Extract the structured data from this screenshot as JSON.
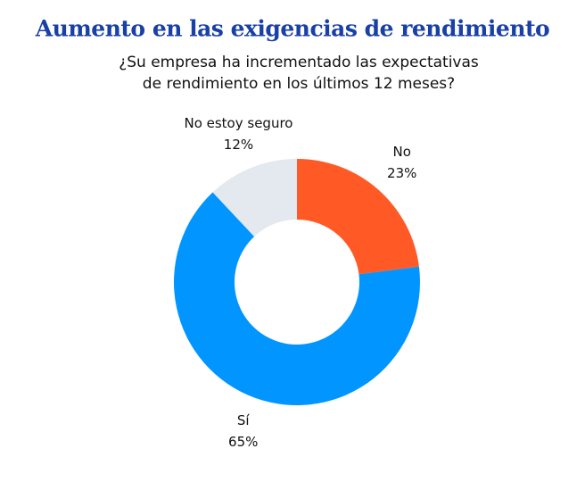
{
  "chart_data": {
    "type": "donut",
    "title": "Aumento en las exigencias de rendimiento",
    "subtitle": [
      "¿Su empresa ha incrementado las expectativas",
      "de rendimiento en los últimos 12 meses?"
    ],
    "categories": [
      "No",
      "Sí",
      "No estoy seguro"
    ],
    "values": [
      23,
      65,
      12
    ],
    "value_labels": [
      "23%",
      "65%",
      "12%"
    ],
    "colors": [
      "#ff5a26",
      "#0095ff",
      "#e3e9ee"
    ]
  }
}
